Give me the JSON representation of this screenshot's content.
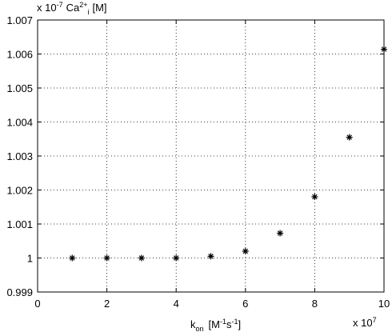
{
  "chart_data": {
    "type": "scatter",
    "xlabel": {
      "symbol": "k",
      "sub": "on",
      "unit_open": "[M",
      "exp1": "-1",
      "unit_s": "s",
      "exp2": "-1",
      "unit_close": "]"
    },
    "x_multiplier": {
      "base": "x 10",
      "exp": "7"
    },
    "ylabel": {
      "base": "x 10",
      "exp": "-7",
      "symbol": "Ca",
      "sup": "2+",
      "sub": "i",
      "unit": "[M]"
    },
    "x": [
      1,
      2,
      3,
      4,
      5,
      6,
      7,
      8,
      9,
      10
    ],
    "series": [
      {
        "color": "#000000",
        "values": [
          1.0,
          1.0,
          1.0,
          1.0,
          1.00005,
          1.0002,
          1.00073,
          1.0018,
          1.00355,
          1.00614
        ]
      }
    ],
    "xlim": [
      0,
      10
    ],
    "xticks": [
      0,
      2,
      4,
      6,
      8,
      10
    ],
    "ylim": [
      0.999,
      1.007
    ],
    "yticks": [
      0.999,
      1,
      1.001,
      1.002,
      1.003,
      1.004,
      1.005,
      1.006,
      1.007
    ],
    "grid": true
  }
}
